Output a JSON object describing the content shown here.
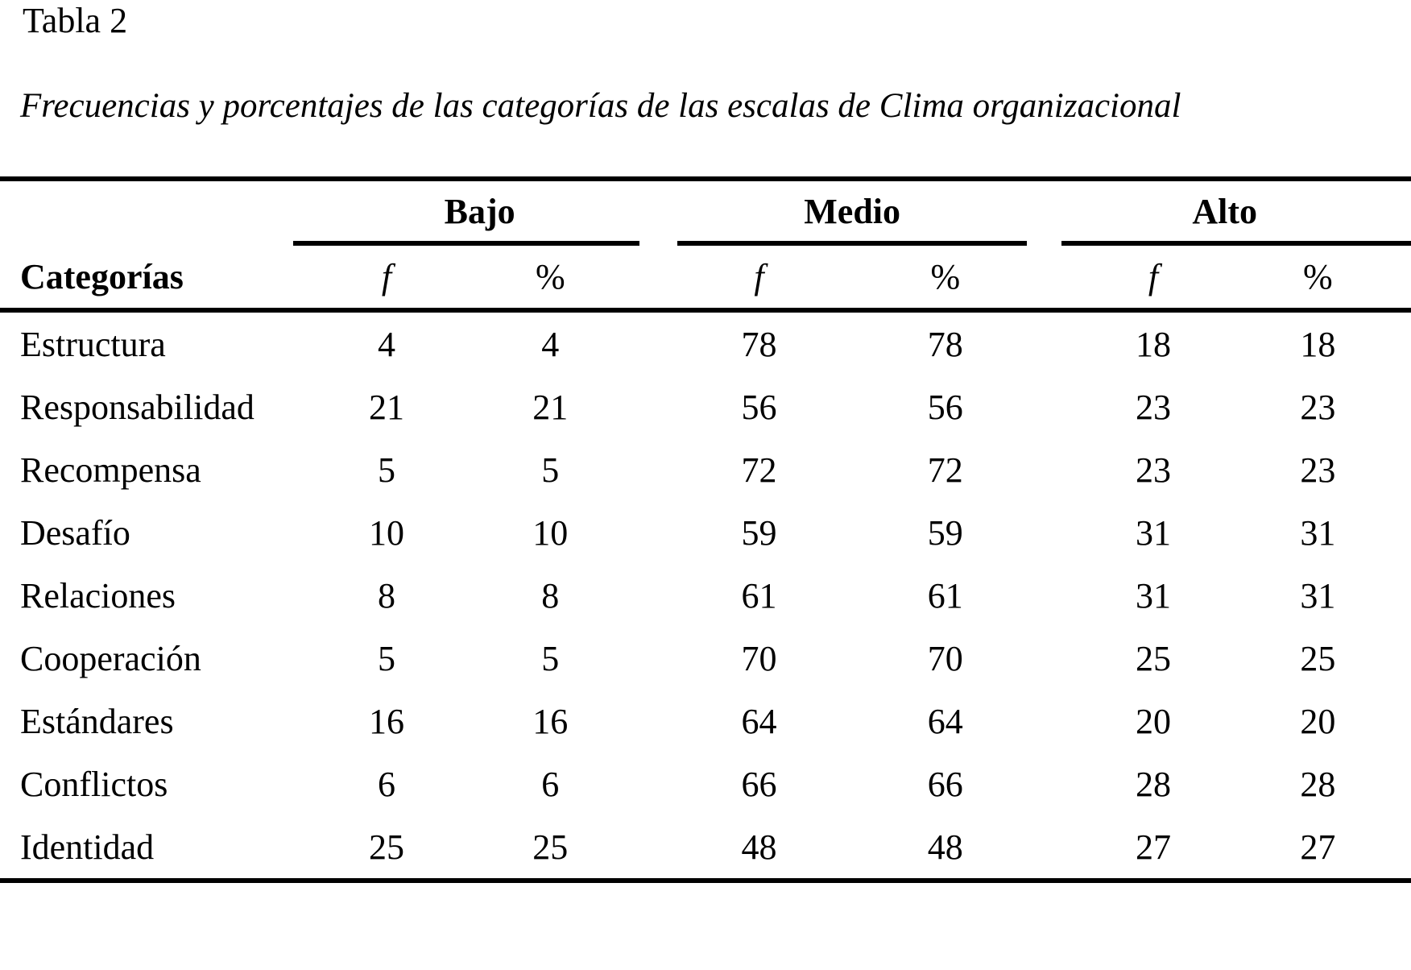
{
  "page": {
    "table_number": "Tabla 2",
    "table_title": "Frecuencias y porcentajes de las categorías de las escalas de Clima organizacional"
  },
  "table": {
    "category_header": "Categorías",
    "groups": [
      {
        "label": "Bajo"
      },
      {
        "label": "Medio"
      },
      {
        "label": "Alto"
      }
    ],
    "subheaders": {
      "f": "f",
      "pct": "%"
    },
    "rows": [
      {
        "label": "Estructura",
        "values": [
          "4",
          "4",
          "78",
          "78",
          "18",
          "18"
        ]
      },
      {
        "label": "Responsabilidad",
        "values": [
          "21",
          "21",
          "56",
          "56",
          "23",
          "23"
        ]
      },
      {
        "label": "Recompensa",
        "values": [
          "5",
          "5",
          "72",
          "72",
          "23",
          "23"
        ]
      },
      {
        "label": "Desafío",
        "values": [
          "10",
          "10",
          "59",
          "59",
          "31",
          "31"
        ]
      },
      {
        "label": "Relaciones",
        "values": [
          "8",
          "8",
          "61",
          "61",
          "31",
          "31"
        ]
      },
      {
        "label": "Cooperación",
        "values": [
          "5",
          "5",
          "70",
          "70",
          "25",
          "25"
        ]
      },
      {
        "label": "Estándares",
        "values": [
          "16",
          "16",
          "64",
          "64",
          "20",
          "20"
        ]
      },
      {
        "label": "Conflictos",
        "values": [
          "6",
          "6",
          "66",
          "66",
          "28",
          "28"
        ]
      },
      {
        "label": "Identidad",
        "values": [
          "25",
          "25",
          "48",
          "48",
          "27",
          "27"
        ]
      }
    ],
    "colors": {
      "text": "#000000",
      "background": "#ffffff",
      "rule": "#000000"
    }
  }
}
